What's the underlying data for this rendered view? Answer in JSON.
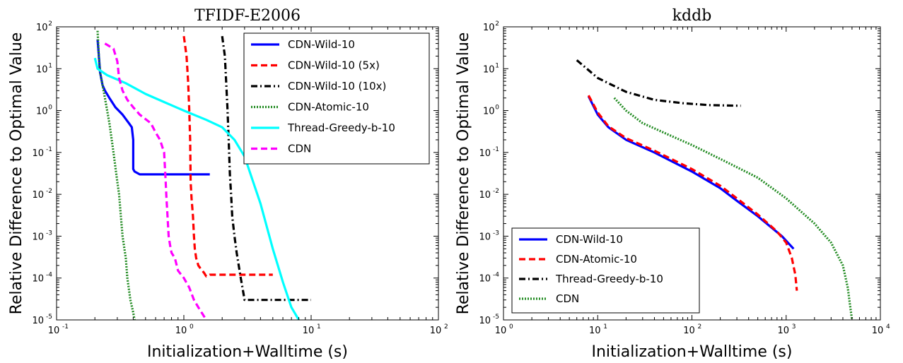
{
  "chart_data": [
    {
      "type": "line",
      "title": "TFIDF-E2006",
      "xlabel": "Initialization+Walltime (s)",
      "ylabel": "Relative Difference to Optimal Value",
      "xscale": "log",
      "yscale": "log",
      "xlim": [
        0.1,
        100
      ],
      "ylim": [
        1e-05,
        100
      ],
      "xticks": [
        {
          "base": "10",
          "exp": "-1"
        },
        {
          "base": "10",
          "exp": "0"
        },
        {
          "base": "10",
          "exp": "1"
        },
        {
          "base": "10",
          "exp": "2"
        }
      ],
      "yticks": [
        {
          "base": "10",
          "exp": "2"
        },
        {
          "base": "10",
          "exp": "1"
        },
        {
          "base": "10",
          "exp": "0"
        },
        {
          "base": "10",
          "exp": "-1"
        },
        {
          "base": "10",
          "exp": "-2"
        },
        {
          "base": "10",
          "exp": "-3"
        },
        {
          "base": "10",
          "exp": "-4"
        },
        {
          "base": "10",
          "exp": "-5"
        }
      ],
      "grid": false,
      "legend_position": "upper-right",
      "series": [
        {
          "name": "CDN-Wild-10",
          "color": "#0000ff",
          "style": "solid",
          "x": [
            0.21,
            0.215,
            0.22,
            0.23,
            0.24,
            0.26,
            0.29,
            0.33,
            0.37,
            0.39,
            0.4,
            0.4,
            0.41,
            0.45,
            0.6,
            1.0,
            1.6
          ],
          "y": [
            50,
            20,
            8,
            4,
            3,
            2,
            1.2,
            0.8,
            0.5,
            0.4,
            0.2,
            0.04,
            0.035,
            0.03,
            0.03,
            0.03,
            0.03
          ]
        },
        {
          "name": "CDN-Wild-10 (5x)",
          "color": "#ff0000",
          "style": "dashed",
          "x": [
            1.0,
            1.05,
            1.08,
            1.1,
            1.12,
            1.13,
            1.15,
            1.18,
            1.2,
            1.22,
            1.25,
            1.3,
            1.35,
            1.4,
            1.45,
            1.5,
            1.6,
            2.0,
            3.0,
            5.0
          ],
          "y": [
            60,
            20,
            5,
            1.2,
            0.2,
            0.02,
            0.008,
            0.003,
            0.001,
            0.0005,
            0.0003,
            0.0002,
            0.00017,
            0.00015,
            0.00013,
            0.00011,
            0.00012,
            0.00012,
            0.00012,
            0.00012
          ]
        },
        {
          "name": "CDN-Wild-10 (10x)",
          "color": "#000000",
          "style": "dashdot",
          "x": [
            2.0,
            2.1,
            2.15,
            2.2,
            2.25,
            2.3,
            2.35,
            2.4,
            2.5,
            2.6,
            2.7,
            2.8,
            3.0,
            3.5,
            5.0,
            10.0
          ],
          "y": [
            60,
            20,
            5,
            1.2,
            0.2,
            0.03,
            0.01,
            0.003,
            0.001,
            0.0004,
            0.0002,
            0.0001,
            3e-05,
            3e-05,
            3e-05,
            3e-05
          ]
        },
        {
          "name": "CDN-Atomic-10",
          "color": "#228b22",
          "style": "dotted",
          "x": [
            0.21,
            0.215,
            0.22,
            0.23,
            0.24,
            0.26,
            0.28,
            0.3,
            0.31,
            0.32,
            0.33,
            0.35,
            0.36,
            0.38,
            0.4,
            0.41
          ],
          "y": [
            80,
            20,
            8,
            4,
            2,
            0.5,
            0.1,
            0.02,
            0.01,
            0.003,
            0.001,
            0.0003,
            0.0001,
            3e-05,
            1.5e-05,
            1e-05
          ]
        },
        {
          "name": "Thread-Greedy-b-10",
          "color": "#00ffff",
          "style": "solid",
          "x": [
            0.2,
            0.21,
            0.25,
            0.35,
            0.5,
            0.7,
            1.0,
            1.5,
            2.0,
            2.5,
            3.0,
            3.5,
            4.0,
            5.0,
            6.0,
            7.0,
            8.0
          ],
          "y": [
            18,
            10,
            7,
            4.5,
            2.5,
            1.6,
            1.0,
            0.6,
            0.4,
            0.2,
            0.08,
            0.02,
            0.006,
            0.0005,
            8e-05,
            2e-05,
            1e-05
          ]
        },
        {
          "name": "CDN",
          "color": "#ff00ff",
          "style": "dashed",
          "x": [
            0.24,
            0.28,
            0.3,
            0.31,
            0.33,
            0.36,
            0.4,
            0.45,
            0.55,
            0.6,
            0.65,
            0.7,
            0.72,
            0.73,
            0.74,
            0.75,
            0.76,
            0.78,
            0.8,
            0.85,
            0.9,
            1.0,
            1.1,
            1.2,
            1.3,
            1.5
          ],
          "y": [
            40,
            30,
            15,
            6,
            3,
            1.8,
            1.2,
            0.8,
            0.5,
            0.3,
            0.2,
            0.1,
            0.02,
            0.008,
            0.004,
            0.002,
            0.001,
            0.0006,
            0.0004,
            0.0003,
            0.00015,
            0.0001,
            6e-05,
            3e-05,
            2e-05,
            1e-05
          ]
        }
      ],
      "legend": [
        "CDN-Wild-10",
        "CDN-Wild-10 (5x)",
        "CDN-Wild-10 (10x)",
        "CDN-Atomic-10",
        "Thread-Greedy-b-10",
        "CDN"
      ]
    },
    {
      "type": "line",
      "title": "kddb",
      "xlabel": "Initialization+Walltime (s)",
      "ylabel": "Relative Difference to Optimal Value",
      "xscale": "log",
      "yscale": "log",
      "xlim": [
        1,
        10000
      ],
      "ylim": [
        1e-05,
        100
      ],
      "xticks": [
        {
          "base": "10",
          "exp": "0"
        },
        {
          "base": "10",
          "exp": "1"
        },
        {
          "base": "10",
          "exp": "2"
        },
        {
          "base": "10",
          "exp": "3"
        },
        {
          "base": "10",
          "exp": "4"
        }
      ],
      "yticks": [
        {
          "base": "10",
          "exp": "2"
        },
        {
          "base": "10",
          "exp": "1"
        },
        {
          "base": "10",
          "exp": "0"
        },
        {
          "base": "10",
          "exp": "-1"
        },
        {
          "base": "10",
          "exp": "-2"
        },
        {
          "base": "10",
          "exp": "-3"
        },
        {
          "base": "10",
          "exp": "-4"
        },
        {
          "base": "10",
          "exp": "-5"
        }
      ],
      "grid": false,
      "legend_position": "lower-left",
      "series": [
        {
          "name": "CDN-Wild-10",
          "color": "#0000ff",
          "style": "solid",
          "x": [
            8,
            10,
            13,
            20,
            40,
            100,
            200,
            300,
            500,
            900,
            1200
          ],
          "y": [
            2.2,
            0.8,
            0.4,
            0.2,
            0.1,
            0.035,
            0.014,
            0.007,
            0.003,
            0.001,
            0.0005
          ]
        },
        {
          "name": "CDN-Atomic-10",
          "color": "#ff0000",
          "style": "dashed",
          "x": [
            8,
            10,
            13,
            20,
            40,
            100,
            200,
            300,
            500,
            800,
            1000,
            1150,
            1250,
            1300
          ],
          "y": [
            2.3,
            0.9,
            0.42,
            0.22,
            0.11,
            0.04,
            0.016,
            0.008,
            0.0033,
            0.0013,
            0.0007,
            0.0003,
            0.00012,
            5e-05
          ]
        },
        {
          "name": "Thread-Greedy-b-10",
          "color": "#000000",
          "style": "dashdot",
          "x": [
            6,
            10,
            20,
            40,
            80,
            150,
            330
          ],
          "y": [
            16,
            6,
            2.8,
            1.8,
            1.5,
            1.35,
            1.3
          ]
        },
        {
          "name": "CDN",
          "color": "#228b22",
          "style": "dotted",
          "x": [
            15,
            20,
            30,
            50,
            100,
            200,
            500,
            1000,
            2000,
            3000,
            4000,
            4500,
            4800,
            5000
          ],
          "y": [
            2.0,
            1.0,
            0.5,
            0.3,
            0.15,
            0.07,
            0.025,
            0.008,
            0.002,
            0.0007,
            0.0002,
            6e-05,
            2e-05,
            1e-05
          ]
        }
      ],
      "legend": [
        "CDN-Wild-10",
        "CDN-Atomic-10",
        "Thread-Greedy-b-10",
        "CDN"
      ]
    }
  ]
}
